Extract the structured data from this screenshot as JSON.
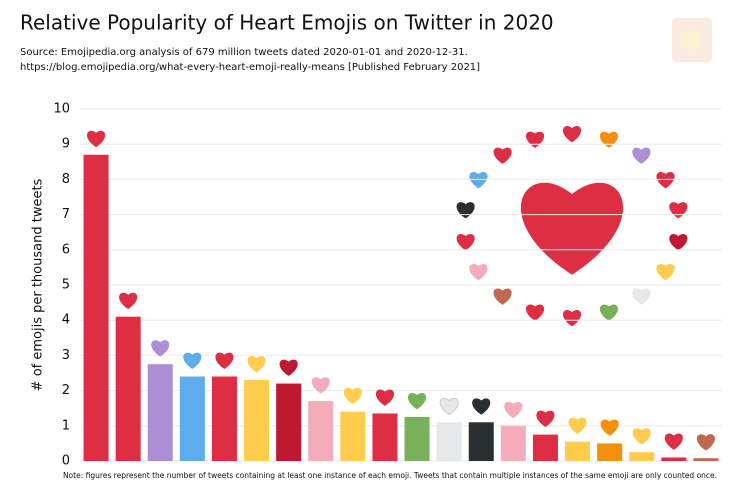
{
  "chart_data": {
    "type": "bar",
    "title": "Relative Popularity of Heart Emojis on Twitter in 2020",
    "subtitle": [
      "Source: Emojipedia.org analysis of 679 million tweets dated 2020-01-01 and 2020-12-31.",
      "https://blog.emojipedia.org/what-every-heart-emoji-really-means [Published February 2021]"
    ],
    "y_label": "# of emojis per thousand tweets",
    "note": "Note: figures represent the number of tweets containing at least one instance of each emoji. Tweets that contain multiple instances of the same emoji are only counted once.",
    "values": [
      8.7,
      4.1,
      2.75,
      2.4,
      2.4,
      2.3,
      2.2,
      1.7,
      1.4,
      1.35,
      1.25,
      1.1,
      1.1,
      1.0,
      0.75,
      0.55,
      0.5,
      0.25,
      0.1,
      0.08
    ],
    "colors": [
      "#dd2e44",
      "#dd2e44",
      "#aa8ed6",
      "#5dadec",
      "#dd2e44",
      "#ffcc4d",
      "#be1931",
      "#f4abba",
      "#ffcc4d",
      "#dd2e44",
      "#78b159",
      "#e6e7e8",
      "#292f33",
      "#f4abba",
      "#dd2e44",
      "#ffcc4d",
      "#f4900c",
      "#ffcc4d",
      "#dd2e44",
      "#c1694f"
    ],
    "ylim": [
      0,
      10
    ],
    "yticks": [
      0,
      1,
      2,
      3,
      4,
      5,
      6,
      7,
      8,
      9,
      10
    ],
    "grid": true
  }
}
